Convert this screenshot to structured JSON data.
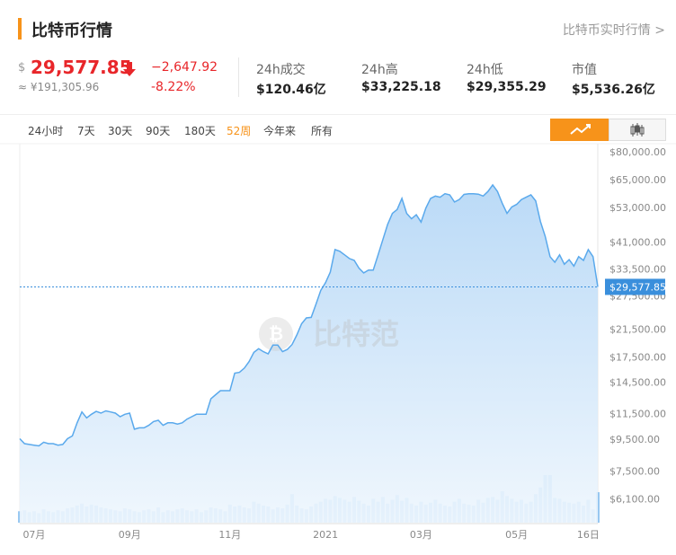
{
  "header": {
    "title": "比特币行情",
    "link": "比特币实时行情 >"
  },
  "price": {
    "currency": "$",
    "value": "29,577.85",
    "cny": "≈ ¥191,305.96",
    "change": "−2,647.92",
    "change_pct": "-8.22%"
  },
  "stats": [
    {
      "label": "24h成交",
      "value": "$120.46亿"
    },
    {
      "label": "24h高",
      "value": "$33,225.18"
    },
    {
      "label": "24h低",
      "value": "$29,355.29"
    },
    {
      "label": "市值",
      "value": "$5,536.26亿"
    }
  ],
  "tabs": {
    "items": [
      "24小时",
      "7天",
      "30天",
      "90天",
      "180天",
      "52周",
      "今年来",
      "所有"
    ],
    "active": 5
  },
  "watermark": "比特范",
  "chart_data": {
    "type": "line",
    "color": "#5aa9ec",
    "log_scale": true,
    "categories": [
      null,
      null,
      null,
      "07月",
      null,
      null,
      null,
      null,
      null,
      null,
      null,
      null,
      null,
      null,
      null,
      null,
      null,
      null,
      null,
      null,
      null,
      null,
      null,
      "09月",
      null,
      null,
      null,
      null,
      null,
      null,
      null,
      null,
      null,
      null,
      null,
      null,
      null,
      null,
      null,
      null,
      null,
      null,
      null,
      null,
      "11月",
      null,
      null,
      null,
      null,
      null,
      null,
      null,
      null,
      null,
      null,
      null,
      null,
      null,
      null,
      null,
      null,
      null,
      null,
      null,
      "2021",
      null,
      null,
      null,
      null,
      null,
      null,
      null,
      null,
      null,
      null,
      null,
      null,
      null,
      null,
      null,
      null,
      null,
      null,
      null,
      "03月",
      null,
      null,
      null,
      null,
      null,
      null,
      null,
      null,
      null,
      null,
      null,
      null,
      null,
      null,
      null,
      null,
      null,
      null,
      null,
      "05月",
      null,
      null,
      null,
      null,
      null,
      null,
      null,
      null,
      null,
      null,
      null,
      null,
      null,
      null,
      "16日",
      null,
      null
    ],
    "values": [
      9600,
      9250,
      9200,
      9150,
      9100,
      9350,
      9250,
      9250,
      9150,
      9200,
      9600,
      9800,
      10800,
      11700,
      11200,
      11500,
      11750,
      11600,
      11800,
      11700,
      11600,
      11300,
      11500,
      11600,
      10300,
      10400,
      10400,
      10600,
      10900,
      11000,
      10600,
      10800,
      10800,
      10700,
      10800,
      11100,
      11300,
      11500,
      11500,
      11500,
      12900,
      13300,
      13700,
      13700,
      13700,
      15600,
      15700,
      16200,
      17000,
      18200,
      18700,
      18300,
      18000,
      19200,
      19200,
      18300,
      18600,
      19300,
      20700,
      22500,
      23500,
      23600,
      26000,
      28800,
      30500,
      33000,
      39000,
      38500,
      37500,
      36500,
      36000,
      34000,
      32800,
      33500,
      33500,
      37500,
      42000,
      47000,
      51000,
      52500,
      57000,
      51000,
      49000,
      50500,
      47800,
      53000,
      57000,
      58000,
      57500,
      59000,
      58500,
      55500,
      56500,
      58700,
      59000,
      59000,
      58800,
      58000,
      60000,
      63000,
      60000,
      55000,
      51000,
      53500,
      54500,
      56500,
      57500,
      58500,
      56000,
      48000,
      43000,
      37000,
      35500,
      37500,
      35000,
      36200,
      34500,
      37000,
      36000,
      39000,
      37000,
      29577.85
    ],
    "volume": [
      12,
      13,
      11,
      12,
      10,
      14,
      12,
      11,
      13,
      12,
      15,
      16,
      18,
      20,
      17,
      19,
      18,
      16,
      15,
      14,
      13,
      12,
      15,
      14,
      12,
      11,
      13,
      14,
      12,
      16,
      11,
      13,
      12,
      14,
      15,
      13,
      12,
      14,
      11,
      13,
      16,
      15,
      14,
      12,
      19,
      17,
      18,
      16,
      15,
      22,
      20,
      18,
      17,
      14,
      16,
      15,
      19,
      30,
      18,
      15,
      14,
      17,
      20,
      22,
      25,
      24,
      28,
      26,
      24,
      22,
      27,
      23,
      20,
      18,
      25,
      22,
      27,
      20,
      24,
      29,
      23,
      26,
      20,
      18,
      22,
      19,
      21,
      24,
      20,
      18,
      17,
      22,
      25,
      20,
      19,
      18,
      24,
      21,
      26,
      27,
      24,
      33,
      28,
      25,
      22,
      24,
      20,
      22,
      30,
      37,
      50,
      50,
      26,
      25,
      22,
      21,
      20,
      22,
      18,
      24,
      14,
      32
    ],
    "ylim": [
      5150,
      85500
    ],
    "yticks": [
      {
        "value": 80000,
        "label": "$80,000.00"
      },
      {
        "value": 65000,
        "label": "$65,000.00"
      },
      {
        "value": 53000,
        "label": "$53,000.00"
      },
      {
        "value": 41000,
        "label": "$41,000.00"
      },
      {
        "value": 33500,
        "label": "$33,500.00"
      },
      {
        "value": 27500,
        "label": "$27,500.00"
      },
      {
        "value": 21500,
        "label": "$21,500.00"
      },
      {
        "value": 17500,
        "label": "$17,500.00"
      },
      {
        "value": 14500,
        "label": "$14,500.00"
      },
      {
        "value": 11500,
        "label": "$11,500.00"
      },
      {
        "value": 9500,
        "label": "$9,500.00"
      },
      {
        "value": 7500,
        "label": "$7,500.00"
      },
      {
        "value": 6100,
        "label": "$6,100.00"
      }
    ],
    "current": {
      "value": 29577.85,
      "label": "$29,577.85"
    }
  }
}
